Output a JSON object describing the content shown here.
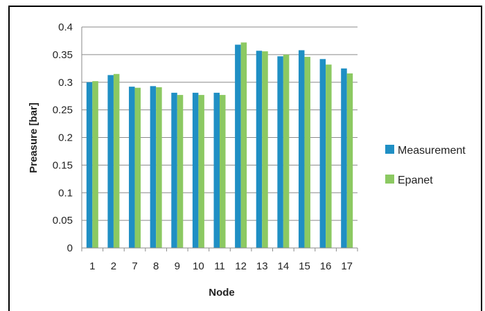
{
  "chart_data": {
    "type": "bar",
    "title": "",
    "xlabel": "Node",
    "ylabel": "Preasure [bar]",
    "ylim": [
      0,
      0.4
    ],
    "ytick_step": 0.05,
    "yticks": [
      "0",
      "0.05",
      "0.1",
      "0.15",
      "0.2",
      "0.25",
      "0.3",
      "0.35",
      "0.4"
    ],
    "grid": true,
    "legend_position": "right",
    "categories": [
      "1",
      "2",
      "7",
      "8",
      "9",
      "10",
      "11",
      "12",
      "13",
      "14",
      "15",
      "16",
      "17"
    ],
    "series": [
      {
        "name": "Measurement",
        "color": "#1f8fc4",
        "values": [
          0.3,
          0.313,
          0.292,
          0.293,
          0.281,
          0.281,
          0.281,
          0.368,
          0.357,
          0.347,
          0.358,
          0.342,
          0.325
        ]
      },
      {
        "name": "Epanet",
        "color": "#8cc962",
        "values": [
          0.302,
          0.315,
          0.29,
          0.291,
          0.277,
          0.277,
          0.277,
          0.372,
          0.356,
          0.35,
          0.346,
          0.332,
          0.316
        ]
      }
    ]
  }
}
